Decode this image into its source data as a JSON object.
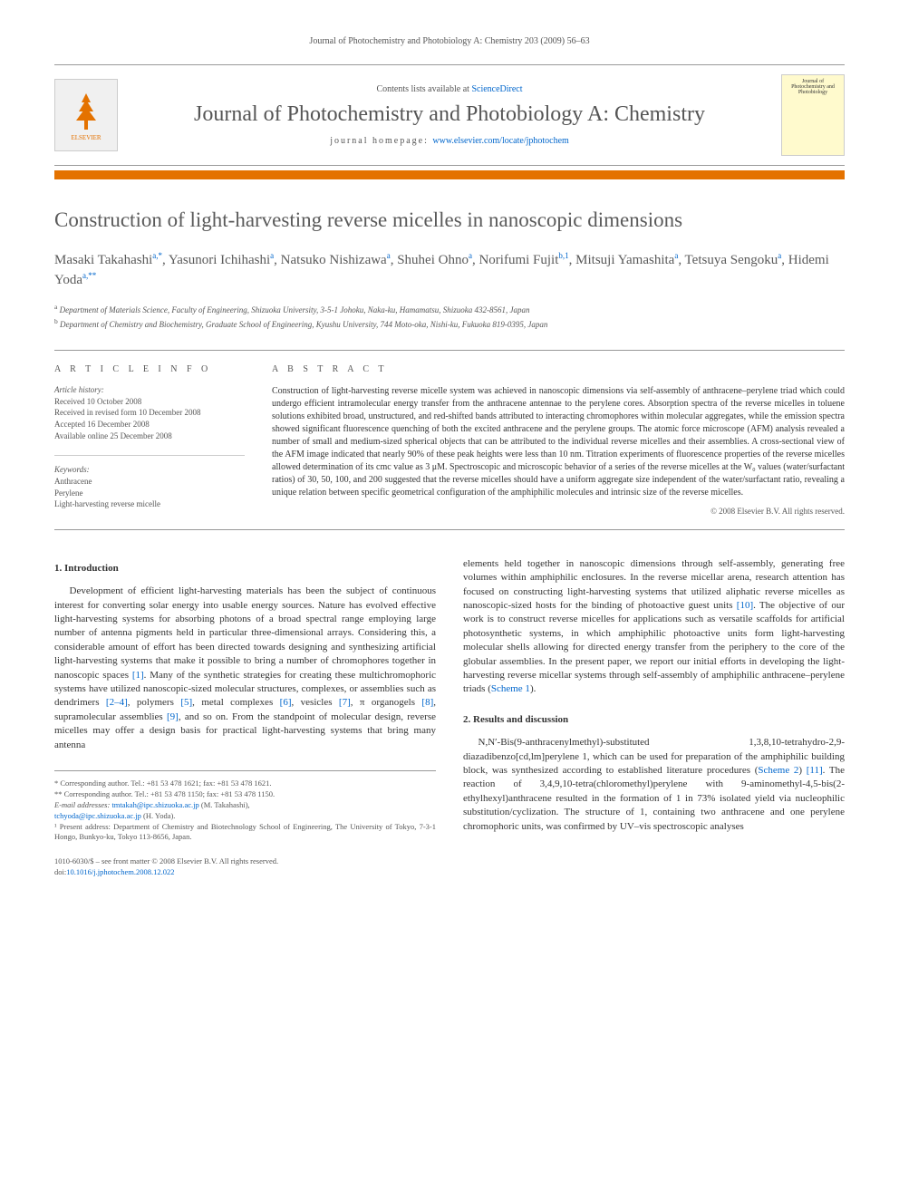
{
  "header_citation": "Journal of Photochemistry and Photobiology A: Chemistry 203 (2009) 56–63",
  "publisher": {
    "logo_label": "ELSEVIER",
    "contents_prefix": "Contents lists available at ",
    "contents_link": "ScienceDirect",
    "journal_name": "Journal of Photochemistry and Photobiology A: Chemistry",
    "homepage_prefix": "journal homepage: ",
    "homepage_url": "www.elsevier.com/locate/jphotochem",
    "cover_text": "Journal of Photochemistry and Photobiology"
  },
  "article": {
    "title": "Construction of light-harvesting reverse micelles in nanoscopic dimensions",
    "authors_html": "Masaki Takahashi<sup>a,*</sup>, Yasunori Ichihashi<sup>a</sup>, Natsuko Nishizawa<sup>a</sup>, Shuhei Ohno<sup>a</sup>, Norifumi Fujit<sup>b,1</sup>, Mitsuji Yamashita<sup>a</sup>, Tetsuya Sengoku<sup>a</sup>, Hidemi Yoda<sup>a,**</sup>",
    "affiliations": [
      {
        "sup": "a",
        "text": "Department of Materials Science, Faculty of Engineering, Shizuoka University, 3-5-1 Johoku, Naka-ku, Hamamatsu, Shizuoka 432-8561, Japan"
      },
      {
        "sup": "b",
        "text": "Department of Chemistry and Biochemistry, Graduate School of Engineering, Kyushu University, 744 Moto-oka, Nishi-ku, Fukuoka 819-0395, Japan"
      }
    ]
  },
  "info": {
    "heading": "A R T I C L E   I N F O",
    "history_label": "Article history:",
    "history": [
      "Received 10 October 2008",
      "Received in revised form 10 December 2008",
      "Accepted 16 December 2008",
      "Available online 25 December 2008"
    ],
    "keywords_label": "Keywords:",
    "keywords": [
      "Anthracene",
      "Perylene",
      "Light-harvesting reverse micelle"
    ]
  },
  "abstract": {
    "heading": "A B S T R A C T",
    "text": "Construction of light-harvesting reverse micelle system was achieved in nanoscopic dimensions via self-assembly of anthracene–perylene triad which could undergo efficient intramolecular energy transfer from the anthracene antennae to the perylene cores. Absorption spectra of the reverse micelles in toluene solutions exhibited broad, unstructured, and red-shifted bands attributed to interacting chromophores within molecular aggregates, while the emission spectra showed significant fluorescence quenching of both the excited anthracene and the perylene groups. The atomic force microscope (AFM) analysis revealed a number of small and medium-sized spherical objects that can be attributed to the individual reverse micelles and their assemblies. A cross-sectional view of the AFM image indicated that nearly 90% of these peak heights were less than 10 nm. Titration experiments of fluorescence properties of the reverse micelles allowed determination of its cmc value as 3 μM. Spectroscopic and microscopic behavior of a series of the reverse micelles at the W₀ values (water/surfactant ratios) of 30, 50, 100, and 200 suggested that the reverse micelles should have a uniform aggregate size independent of the water/surfactant ratio, revealing a unique relation between specific geometrical configuration of the amphiphilic molecules and intrinsic size of the reverse micelles.",
    "copyright": "© 2008 Elsevier B.V. All rights reserved."
  },
  "sections": {
    "intro_heading": "1.  Introduction",
    "intro_p1": "Development of efficient light-harvesting materials has been the subject of continuous interest for converting solar energy into usable energy sources. Nature has evolved effective light-harvesting systems for absorbing photons of a broad spectral range employing large number of antenna pigments held in particular three-dimensional arrays. Considering this, a considerable amount of effort has been directed towards designing and synthesizing artificial light-harvesting systems that make it possible to bring a number of chromophores together in nanoscopic spaces ",
    "intro_ref1": "[1]",
    "intro_p1b": ". Many of the synthetic strategies for creating these multichromophoric systems have utilized nanoscopic-sized molecular structures, complexes, or assemblies such as dendrimers ",
    "intro_ref2": "[2–4]",
    "intro_p1c": ", polymers ",
    "intro_ref3": "[5]",
    "intro_p1d": ", metal complexes ",
    "intro_ref4": "[6]",
    "intro_p1e": ", vesicles ",
    "intro_ref5": "[7]",
    "intro_p1f": ", π organogels ",
    "intro_ref6": "[8]",
    "intro_p1g": ", supramolecular assemblies ",
    "intro_ref7": "[9]",
    "intro_p1h": ", and so on. From the standpoint of molecular design, reverse micelles may offer a design basis for practical light-harvesting systems that bring many antenna",
    "intro_p2a": "elements held together in nanoscopic dimensions through self-assembly, generating free volumes within amphiphilic enclosures. In the reverse micellar arena, research attention has focused on constructing light-harvesting systems that utilized aliphatic reverse micelles as nanoscopic-sized hosts for the binding of photoactive guest units ",
    "intro_ref8": "[10]",
    "intro_p2b": ". The objective of our work is to construct reverse micelles for applications such as versatile scaffolds for artificial photosynthetic systems, in which amphiphilic photoactive units form light-harvesting molecular shells allowing for directed energy transfer from the periphery to the core of the globular assemblies. In the present paper, we report our initial efforts in developing the light-harvesting reverse micellar systems through self-assembly of amphiphilic anthracene–perylene triads (",
    "intro_scheme1": "Scheme 1",
    "intro_p2c": ").",
    "results_heading": "2.  Results and discussion",
    "results_p1a": "N,N′-Bis(9-anthracenylmethyl)-substituted 1,3,8,10-tetrahydro-2,9-diazadibenzo[cd,lm]perylene 1, which can be used for preparation of the amphiphilic building block, was synthesized according to established literature procedures (",
    "results_scheme2": "Scheme 2",
    "results_p1b": ") ",
    "results_ref11": "[11]",
    "results_p1c": ". The reaction of 3,4,9,10-tetra(chloromethyl)perylene with 9-aminomethyl-4,5-bis(2-ethylhexyl)anthracene resulted in the formation of 1 in 73% isolated yield via nucleophilic substitution/cyclization. The structure of 1, containing two anthracene and one perylene chromophoric units, was confirmed by UV–vis spectroscopic analyses"
  },
  "footnotes": {
    "corr1": "* Corresponding author. Tel.: +81 53 478 1621; fax: +81 53 478 1621.",
    "corr2": "** Corresponding author. Tel.: +81 53 478 1150; fax: +81 53 478 1150.",
    "email_label": "E-mail addresses: ",
    "email1": "tmtakah@ipc.shizuoka.ac.jp",
    "email1_suffix": " (M. Takahashi),",
    "email2": "tchyoda@ipc.shizuoka.ac.jp",
    "email2_suffix": " (H. Yoda).",
    "present": "¹ Present address: Department of Chemistry and Biotechnology School of Engineering, The University of Tokyo, 7-3-1 Hongo, Bunkyo-ku, Tokyo 113-8656, Japan."
  },
  "doi": {
    "line1": "1010-6030/$ – see front matter © 2008 Elsevier B.V. All rights reserved.",
    "prefix": "doi:",
    "link": "10.1016/j.jphotochem.2008.12.022"
  },
  "colors": {
    "accent": "#e47200",
    "link": "#0066cc",
    "text_gray": "#555555"
  }
}
